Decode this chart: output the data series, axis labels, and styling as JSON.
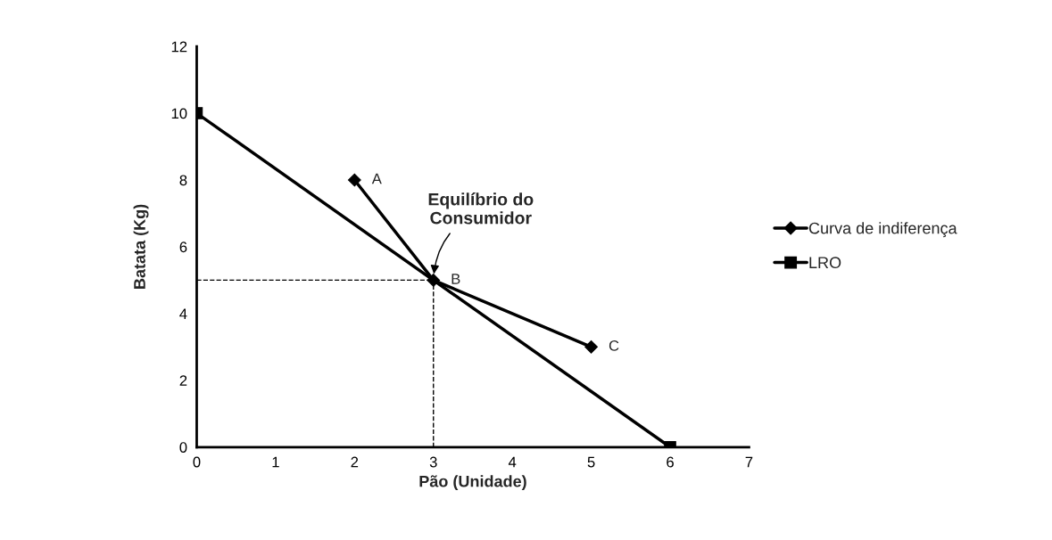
{
  "chart_data": {
    "type": "line",
    "xlabel": "Pão (Unidade)",
    "ylabel": "Batata (Kg)",
    "series": [
      {
        "name": "Curva de indiferença",
        "color": "#000000",
        "x": [
          2,
          3,
          5
        ],
        "values": [
          8,
          5,
          3
        ],
        "marker": "diamond"
      },
      {
        "name": "LRO",
        "color": "#000000",
        "x": [
          0,
          6
        ],
        "values": [
          10,
          0
        ],
        "marker": "square"
      },
      {
        "color": "#000000",
        "x": [
          0,
          3
        ],
        "values": [
          5,
          5
        ],
        "line_style": "dashed",
        "marker": "none"
      },
      {
        "color": "#000000",
        "x": [
          3,
          3
        ],
        "values": [
          0,
          5
        ],
        "line_style": "dashed",
        "marker": "none"
      }
    ],
    "annotations": [
      {
        "text": "A",
        "x": 2,
        "y": 8
      },
      {
        "text": "B",
        "x": 3,
        "y": 5
      },
      {
        "text": "C",
        "x": 5,
        "y": 3
      },
      {
        "text": "Equilíbrio do\nConsumidor",
        "x": 3,
        "y": 5
      }
    ],
    "xlim": [
      0,
      7
    ],
    "xticks": [
      0,
      1,
      2,
      3,
      4,
      5,
      6,
      7
    ],
    "ylim": [
      0,
      12
    ],
    "yticks": [
      0,
      2,
      4,
      6,
      8,
      10,
      12
    ],
    "grid": false,
    "legend": "right",
    "line_style": "solid"
  }
}
